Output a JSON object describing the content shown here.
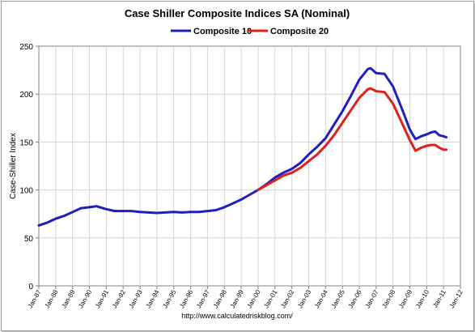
{
  "chart_data": {
    "type": "line",
    "title": "Case Shiller Composite Indices SA (Nominal)",
    "ylabel": "Case-Shiller Index",
    "xlabel": "",
    "source": "http://www.calculatedriskblog.com/",
    "ylim": [
      0,
      250
    ],
    "yticks": [
      0,
      50,
      100,
      150,
      200,
      250
    ],
    "grid": true,
    "legend_position": "top-center",
    "x_tick_labels": [
      "Jan-87",
      "Jan-88",
      "Jan-89",
      "Jan-90",
      "Jan-91",
      "Jan-92",
      "Jan-93",
      "Jan-94",
      "Jan-95",
      "Jan-96",
      "Jan-97",
      "Jan-98",
      "Jan-99",
      "Jan-00",
      "Jan-01",
      "Jan-02",
      "Jan-03",
      "Jan-04",
      "Jan-05",
      "Jan-06",
      "Jan-07",
      "Jan-08",
      "Jan-09",
      "Jan-10",
      "Jan-11",
      "Jan-12"
    ],
    "series": [
      {
        "name": "Composite 10",
        "color": "#1f1fbf",
        "points": [
          [
            "Jan-87",
            63
          ],
          [
            "Jul-87",
            66
          ],
          [
            "Jan-88",
            70
          ],
          [
            "Jul-88",
            73
          ],
          [
            "Jan-89",
            77
          ],
          [
            "Jul-89",
            81
          ],
          [
            "Jan-90",
            82
          ],
          [
            "Jun-90",
            83
          ],
          [
            "Jan-91",
            80
          ],
          [
            "Jul-91",
            78
          ],
          [
            "Jan-92",
            78
          ],
          [
            "Jul-92",
            78
          ],
          [
            "Jan-93",
            77
          ],
          [
            "Jul-93",
            76.5
          ],
          [
            "Jan-94",
            76
          ],
          [
            "Jul-94",
            76.5
          ],
          [
            "Jan-95",
            77
          ],
          [
            "Jul-95",
            76.5
          ],
          [
            "Jan-96",
            77
          ],
          [
            "Jul-96",
            77
          ],
          [
            "Jan-97",
            78
          ],
          [
            "Jul-97",
            79
          ],
          [
            "Jan-98",
            82
          ],
          [
            "Jul-98",
            86
          ],
          [
            "Jan-99",
            90
          ],
          [
            "Jul-99",
            95
          ],
          [
            "Jan-00",
            100
          ],
          [
            "Jul-00",
            106
          ],
          [
            "Jan-01",
            113
          ],
          [
            "Jul-01",
            118
          ],
          [
            "Jan-02",
            122
          ],
          [
            "Jul-02",
            128
          ],
          [
            "Jan-03",
            137
          ],
          [
            "Jul-03",
            145
          ],
          [
            "Jan-04",
            154
          ],
          [
            "Jul-04",
            168
          ],
          [
            "Jan-05",
            182
          ],
          [
            "Jul-05",
            198
          ],
          [
            "Jan-06",
            215
          ],
          [
            "Jul-06",
            226
          ],
          [
            "Sep-06",
            227
          ],
          [
            "Jan-07",
            222
          ],
          [
            "Jul-07",
            221
          ],
          [
            "Jan-08",
            208
          ],
          [
            "Jul-08",
            186
          ],
          [
            "Jan-09",
            163
          ],
          [
            "May-09",
            153
          ],
          [
            "Sep-09",
            156
          ],
          [
            "Jan-10",
            158
          ],
          [
            "Apr-10",
            160
          ],
          [
            "Jul-10",
            161
          ],
          [
            "Oct-10",
            157
          ],
          [
            "Jan-11",
            156
          ],
          [
            "Mar-11",
            155
          ]
        ]
      },
      {
        "name": "Composite 20",
        "color": "#e0201e",
        "points": [
          [
            "Jan-00",
            100
          ],
          [
            "Jul-00",
            105
          ],
          [
            "Jan-01",
            110
          ],
          [
            "Jul-01",
            115
          ],
          [
            "Jan-02",
            118
          ],
          [
            "Jul-02",
            123
          ],
          [
            "Jan-03",
            130
          ],
          [
            "Jul-03",
            137
          ],
          [
            "Jan-04",
            146
          ],
          [
            "Jul-04",
            157
          ],
          [
            "Jan-05",
            170
          ],
          [
            "Jul-05",
            183
          ],
          [
            "Jan-06",
            196
          ],
          [
            "Jul-06",
            205
          ],
          [
            "Sep-06",
            206
          ],
          [
            "Jan-07",
            203
          ],
          [
            "Jul-07",
            202
          ],
          [
            "Jan-08",
            190
          ],
          [
            "Jul-08",
            171
          ],
          [
            "Jan-09",
            152
          ],
          [
            "May-09",
            141
          ],
          [
            "Sep-09",
            144
          ],
          [
            "Jan-10",
            146
          ],
          [
            "Apr-10",
            147
          ],
          [
            "Jul-10",
            147
          ],
          [
            "Oct-10",
            144
          ],
          [
            "Jan-11",
            142
          ],
          [
            "Mar-11",
            142
          ]
        ]
      }
    ]
  }
}
